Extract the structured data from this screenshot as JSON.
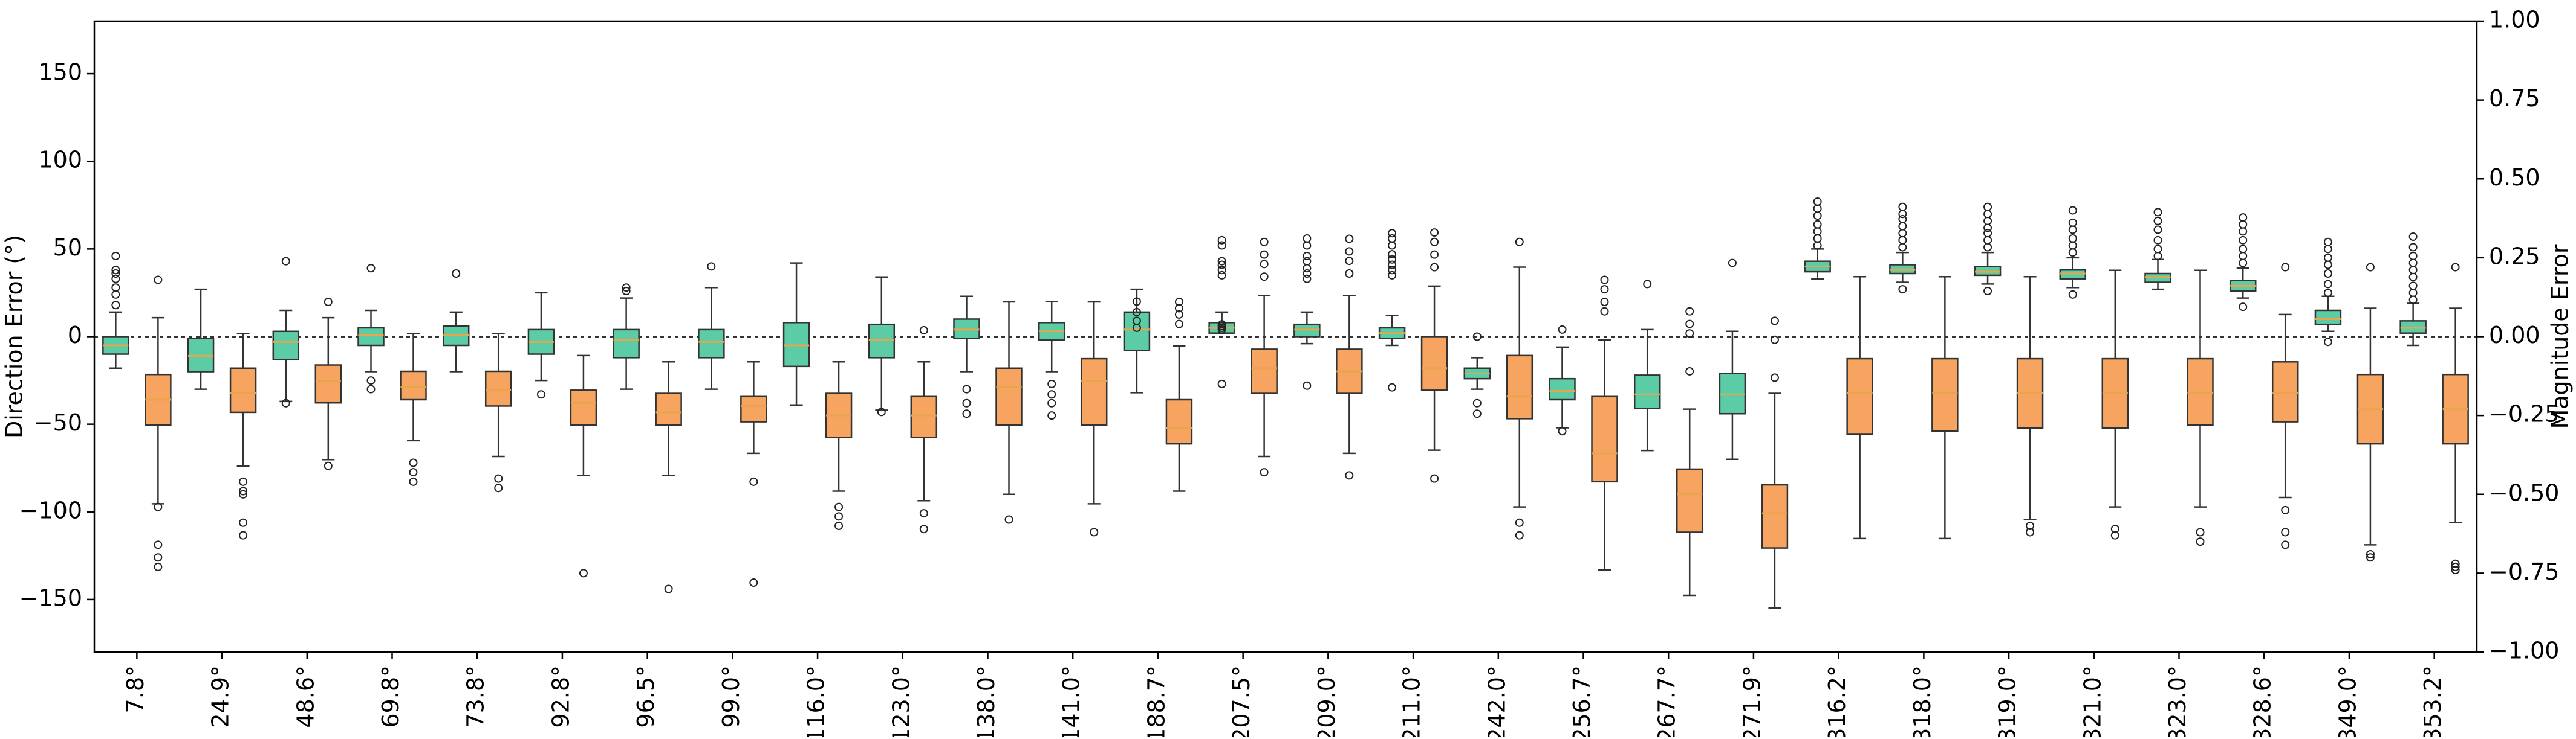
{
  "chart_data": {
    "type": "box",
    "title": "",
    "xlabel": "",
    "ylabel": "Direction Error (°)",
    "y2label": "Magnitude Error",
    "ylim": [
      -180,
      180
    ],
    "y2lim": [
      -1.0,
      1.0
    ],
    "yticks": [
      "−150",
      "−100",
      "−50",
      "0",
      "50",
      "100",
      "150"
    ],
    "yticks_values": [
      -150,
      -100,
      -50,
      0,
      50,
      100,
      150
    ],
    "y2ticks": [
      "−1.00",
      "−0.75",
      "−0.50",
      "−0.25",
      "0.00",
      "0.25",
      "0.50",
      "0.75",
      "1.00"
    ],
    "y2ticks_values": [
      -1.0,
      -0.75,
      -0.5,
      -0.25,
      0.0,
      0.25,
      0.5,
      0.75,
      1.0
    ],
    "reference_line": 0,
    "colors": {
      "direction": "#5ccca6",
      "magnitude": "#f6a45f",
      "median": "#e6a64d"
    },
    "categories": [
      "7.8°",
      "24.9°",
      "48.6°",
      "69.8°",
      "73.8°",
      "92.8°",
      "96.5°",
      "99.0°",
      "116.0°",
      "123.0°",
      "138.0°",
      "141.0°",
      "188.7°",
      "207.5°",
      "209.0°",
      "211.0°",
      "242.0°",
      "256.7°",
      "267.7°",
      "271.9°",
      "316.2°",
      "318.0°",
      "319.0°",
      "321.0°",
      "323.0°",
      "328.6°",
      "349.0°",
      "353.2°"
    ],
    "series": [
      {
        "name": "Direction Error",
        "axis": "left",
        "boxes": [
          {
            "whislo": -18,
            "q1": -10,
            "med": -5,
            "q3": 0,
            "whishi": 14,
            "fliers": [
              18,
              24,
              28,
              33,
              36,
              38,
              46
            ]
          },
          {
            "whislo": -30,
            "q1": -20,
            "med": -11,
            "q3": -1,
            "whishi": 27,
            "fliers": []
          },
          {
            "whislo": -37,
            "q1": -13,
            "med": -3,
            "q3": 3,
            "whishi": 15,
            "fliers": [
              -38,
              43
            ]
          },
          {
            "whislo": -20,
            "q1": -5,
            "med": 1,
            "q3": 5,
            "whishi": 15,
            "fliers": [
              -25,
              -30,
              39
            ]
          },
          {
            "whislo": -20,
            "q1": -5,
            "med": 1,
            "q3": 6,
            "whishi": 14,
            "fliers": [
              36
            ]
          },
          {
            "whislo": -25,
            "q1": -10,
            "med": -3,
            "q3": 4,
            "whishi": 25,
            "fliers": [
              -33
            ]
          },
          {
            "whislo": -30,
            "q1": -12,
            "med": -2,
            "q3": 4,
            "whishi": 22,
            "fliers": [
              26,
              28
            ]
          },
          {
            "whislo": -30,
            "q1": -12,
            "med": -3,
            "q3": 4,
            "whishi": 28,
            "fliers": [
              40
            ]
          },
          {
            "whislo": -39,
            "q1": -17,
            "med": -5,
            "q3": 8,
            "whishi": 42,
            "fliers": []
          },
          {
            "whislo": -42,
            "q1": -12,
            "med": -2,
            "q3": 7,
            "whishi": 34,
            "fliers": [
              -43
            ]
          },
          {
            "whislo": -20,
            "q1": -1,
            "med": 4,
            "q3": 10,
            "whishi": 23,
            "fliers": [
              -30,
              -38,
              -44
            ]
          },
          {
            "whislo": -20,
            "q1": -2,
            "med": 3,
            "q3": 8,
            "whishi": 20,
            "fliers": [
              -27,
              -33,
              -38,
              -45
            ]
          },
          {
            "whislo": -32,
            "q1": -8,
            "med": 4,
            "q3": 14,
            "whishi": 27,
            "fliers": [
              5,
              9,
              14,
              20
            ]
          },
          {
            "whislo": 2,
            "q1": 2,
            "med": 5,
            "q3": 8,
            "whishi": 14,
            "fliers": [
              -27,
              4,
              5,
              6,
              7,
              35,
              38,
              41,
              43,
              52,
              55
            ]
          },
          {
            "whislo": -4,
            "q1": 0,
            "med": 4,
            "q3": 7,
            "whishi": 14,
            "fliers": [
              -28,
              33,
              36,
              39,
              43,
              46,
              52,
              56
            ]
          },
          {
            "whislo": -5,
            "q1": -1,
            "med": 2,
            "q3": 5,
            "whishi": 12,
            "fliers": [
              -29,
              35,
              38,
              41,
              44,
              47,
              52,
              56,
              59
            ]
          },
          {
            "whislo": -30,
            "q1": -24,
            "med": -21,
            "q3": -18,
            "whishi": -12,
            "fliers": [
              0,
              -38,
              -44
            ]
          },
          {
            "whislo": -52,
            "q1": -36,
            "med": -31,
            "q3": -24,
            "whishi": -6,
            "fliers": [
              -54,
              4
            ]
          },
          {
            "whislo": -65,
            "q1": -41,
            "med": -33,
            "q3": -22,
            "whishi": 4,
            "fliers": [
              30
            ]
          },
          {
            "whislo": -70,
            "q1": -44,
            "med": -33,
            "q3": -21,
            "whishi": 3,
            "fliers": [
              42
            ]
          },
          {
            "whislo": 33,
            "q1": 37,
            "med": 40,
            "q3": 43,
            "whishi": 50,
            "fliers": [
              52,
              56,
              60,
              64,
              69,
              73,
              77
            ]
          },
          {
            "whislo": 31,
            "q1": 36,
            "med": 38,
            "q3": 41,
            "whishi": 48,
            "fliers": [
              27,
              51,
              55,
              59,
              63,
              67,
              70,
              74
            ]
          },
          {
            "whislo": 30,
            "q1": 35,
            "med": 37,
            "q3": 40,
            "whishi": 48,
            "fliers": [
              26,
              51,
              55,
              59,
              62,
              66,
              70,
              74
            ]
          },
          {
            "whislo": 28,
            "q1": 33,
            "med": 36,
            "q3": 38,
            "whishi": 45,
            "fliers": [
              24,
              48,
              52,
              56,
              61,
              65,
              72
            ]
          },
          {
            "whislo": 27,
            "q1": 31,
            "med": 34,
            "q3": 36,
            "whishi": 44,
            "fliers": [
              46,
              50,
              55,
              61,
              66,
              71
            ]
          },
          {
            "whislo": 22,
            "q1": 26,
            "med": 29,
            "q3": 32,
            "whishi": 39,
            "fliers": [
              17,
              42,
              46,
              50,
              55,
              60,
              64,
              68
            ]
          },
          {
            "whislo": 3,
            "q1": 7,
            "med": 10,
            "q3": 15,
            "whishi": 23,
            "fliers": [
              -3,
              25,
              30,
              36,
              41,
              45,
              50,
              54
            ]
          },
          {
            "whislo": -5,
            "q1": 2,
            "med": 5,
            "q3": 9,
            "whishi": 19,
            "fliers": [
              21,
              25,
              29,
              34,
              38,
              42,
              46,
              51,
              57
            ]
          }
        ]
      },
      {
        "name": "Magnitude Error",
        "axis": "right",
        "boxes": [
          {
            "whislo": -0.53,
            "q1": -0.28,
            "med": -0.2,
            "q3": -0.12,
            "whishi": 0.06,
            "fliers": [
              -0.54,
              -0.66,
              -0.7,
              -0.73,
              0.18
            ]
          },
          {
            "whislo": -0.41,
            "q1": -0.24,
            "med": -0.18,
            "q3": -0.1,
            "whishi": 0.01,
            "fliers": [
              -0.46,
              -0.49,
              -0.5,
              -0.59,
              -0.63
            ]
          },
          {
            "whislo": -0.39,
            "q1": -0.21,
            "med": -0.14,
            "q3": -0.09,
            "whishi": 0.06,
            "fliers": [
              -0.41,
              0.11
            ]
          },
          {
            "whislo": -0.33,
            "q1": -0.2,
            "med": -0.16,
            "q3": -0.11,
            "whishi": 0.01,
            "fliers": [
              -0.4,
              -0.43,
              -0.46
            ]
          },
          {
            "whislo": -0.38,
            "q1": -0.22,
            "med": -0.17,
            "q3": -0.11,
            "whishi": 0.01,
            "fliers": [
              -0.45,
              -0.48
            ]
          },
          {
            "whislo": -0.44,
            "q1": -0.28,
            "med": -0.21,
            "q3": -0.17,
            "whishi": -0.06,
            "fliers": [
              -0.75
            ]
          },
          {
            "whislo": -0.44,
            "q1": -0.28,
            "med": -0.24,
            "q3": -0.18,
            "whishi": -0.08,
            "fliers": [
              -0.8
            ]
          },
          {
            "whislo": -0.37,
            "q1": -0.27,
            "med": -0.22,
            "q3": -0.19,
            "whishi": -0.08,
            "fliers": [
              -0.46,
              -0.78
            ]
          },
          {
            "whislo": -0.49,
            "q1": -0.32,
            "med": -0.25,
            "q3": -0.18,
            "whishi": -0.08,
            "fliers": [
              -0.54,
              -0.57,
              -0.6
            ]
          },
          {
            "whislo": -0.52,
            "q1": -0.32,
            "med": -0.25,
            "q3": -0.19,
            "whishi": -0.08,
            "fliers": [
              -0.56,
              -0.61,
              0.02
            ]
          },
          {
            "whislo": -0.5,
            "q1": -0.28,
            "med": -0.16,
            "q3": -0.1,
            "whishi": 0.11,
            "fliers": [
              -0.58
            ]
          },
          {
            "whislo": -0.53,
            "q1": -0.28,
            "med": -0.14,
            "q3": -0.07,
            "whishi": 0.11,
            "fliers": [
              -0.62
            ]
          },
          {
            "whislo": -0.49,
            "q1": -0.34,
            "med": -0.29,
            "q3": -0.2,
            "whishi": -0.03,
            "fliers": [
              0.04,
              0.07,
              0.09,
              0.11
            ]
          },
          {
            "whislo": -0.38,
            "q1": -0.18,
            "med": -0.1,
            "q3": -0.04,
            "whishi": 0.13,
            "fliers": [
              -0.43,
              0.19,
              0.23,
              0.26,
              0.3
            ]
          },
          {
            "whislo": -0.37,
            "q1": -0.18,
            "med": -0.11,
            "q3": -0.04,
            "whishi": 0.13,
            "fliers": [
              -0.44,
              0.2,
              0.24,
              0.27,
              0.31
            ]
          },
          {
            "whislo": -0.36,
            "q1": -0.17,
            "med": -0.1,
            "q3": 0.0,
            "whishi": 0.16,
            "fliers": [
              -0.45,
              0.22,
              0.26,
              0.3,
              0.33
            ]
          },
          {
            "whislo": -0.54,
            "q1": -0.26,
            "med": -0.19,
            "q3": -0.06,
            "whishi": 0.22,
            "fliers": [
              -0.59,
              -0.63,
              0.3
            ]
          },
          {
            "whislo": -0.74,
            "q1": -0.46,
            "med": -0.37,
            "q3": -0.19,
            "whishi": -0.01,
            "fliers": [
              0.08,
              0.11,
              0.15,
              0.18
            ]
          },
          {
            "whislo": -0.82,
            "q1": -0.62,
            "med": -0.5,
            "q3": -0.42,
            "whishi": -0.23,
            "fliers": [
              -0.11,
              0.01,
              0.04,
              0.08
            ]
          },
          {
            "whislo": -0.86,
            "q1": -0.67,
            "med": -0.56,
            "q3": -0.47,
            "whishi": -0.18,
            "fliers": [
              -0.13,
              -0.01,
              0.05
            ]
          },
          {
            "whislo": -0.64,
            "q1": -0.31,
            "med": -0.18,
            "q3": -0.07,
            "whishi": 0.19,
            "fliers": []
          },
          {
            "whislo": -0.64,
            "q1": -0.3,
            "med": -0.18,
            "q3": -0.07,
            "whishi": 0.19,
            "fliers": []
          },
          {
            "whislo": -0.58,
            "q1": -0.29,
            "med": -0.18,
            "q3": -0.07,
            "whishi": 0.19,
            "fliers": [
              -0.6,
              -0.62
            ]
          },
          {
            "whislo": -0.54,
            "q1": -0.29,
            "med": -0.18,
            "q3": -0.07,
            "whishi": 0.21,
            "fliers": [
              -0.61,
              -0.63
            ]
          },
          {
            "whislo": -0.54,
            "q1": -0.28,
            "med": -0.18,
            "q3": -0.07,
            "whishi": 0.21,
            "fliers": [
              -0.62,
              -0.65
            ]
          },
          {
            "whislo": -0.51,
            "q1": -0.27,
            "med": -0.18,
            "q3": -0.08,
            "whishi": 0.07,
            "fliers": [
              -0.55,
              -0.62,
              -0.66,
              0.22
            ]
          },
          {
            "whislo": -0.66,
            "q1": -0.34,
            "med": -0.23,
            "q3": -0.12,
            "whishi": 0.09,
            "fliers": [
              -0.69,
              -0.7,
              0.22
            ]
          },
          {
            "whislo": -0.59,
            "q1": -0.34,
            "med": -0.23,
            "q3": -0.12,
            "whishi": 0.09,
            "fliers": [
              -0.72,
              -0.73,
              -0.74,
              0.22
            ]
          }
        ]
      }
    ]
  }
}
